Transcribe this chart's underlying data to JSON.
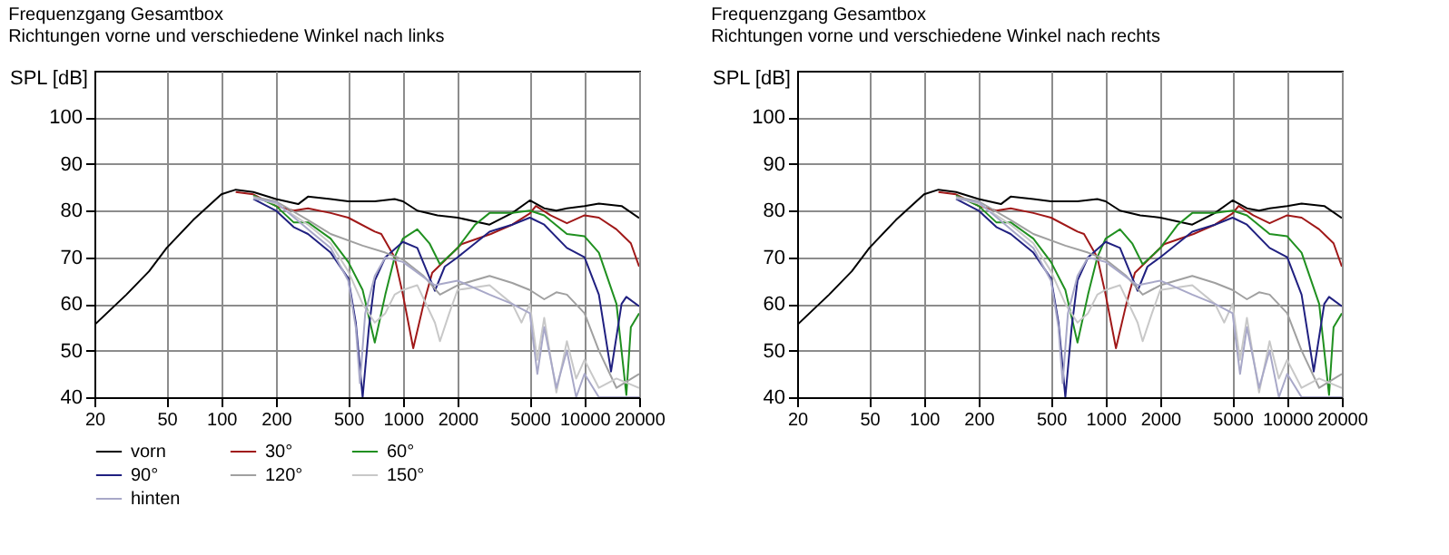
{
  "chart_data": [
    {
      "type": "line",
      "title": "Frequenzgang Gesamtbox",
      "subtitle": "Richtungen vorne und verschiedene Winkel nach links",
      "ylabel": "SPL [dB]",
      "log": "x",
      "grid": true,
      "legend": "bottom",
      "line_style": "solid",
      "xlim": [
        20,
        20000
      ],
      "xticks": [
        20,
        50,
        100,
        200,
        500,
        1000,
        2000,
        5000,
        10000,
        20000
      ],
      "ylim": [
        40,
        110
      ],
      "yticks": [
        40,
        50,
        60,
        70,
        80,
        90,
        100
      ],
      "series": [
        {
          "name": "vorn",
          "color": "#000000",
          "x": [
            20,
            30,
            40,
            50,
            70,
            100,
            120,
            150,
            200,
            265,
            300,
            400,
            500,
            700,
            900,
            1000,
            1200,
            1550,
            2000,
            3000,
            4000,
            5000,
            6000,
            7000,
            8000,
            10000,
            12000,
            16000,
            20000
          ],
          "values": [
            55.5,
            62,
            67,
            72,
            78,
            83.5,
            84.5,
            84,
            82.5,
            81.4,
            83,
            82.5,
            82,
            82,
            82.5,
            82,
            80,
            79,
            78.5,
            77,
            79.5,
            82.2,
            80.5,
            80,
            80.5,
            81,
            81.5,
            81,
            78.4
          ]
        },
        {
          "name": "30°",
          "color": "#a01818",
          "x": [
            120,
            150,
            200,
            250,
            300,
            400,
            500,
            700,
            760,
            900,
            1000,
            1140,
            1300,
            1450,
            2100,
            3050,
            4000,
            5000,
            5400,
            6500,
            8000,
            10000,
            12000,
            15000,
            18000,
            20000
          ],
          "values": [
            84,
            83.5,
            81,
            80,
            80.5,
            79.5,
            78.5,
            75.5,
            75,
            70,
            62,
            50.5,
            60,
            66.7,
            72.8,
            75,
            77,
            79.4,
            81,
            79,
            77.3,
            79,
            78.5,
            76,
            73,
            68
          ]
        },
        {
          "name": "60°",
          "color": "#209020",
          "x": [
            150,
            200,
            250,
            300,
            400,
            500,
            600,
            700,
            800,
            900,
            1000,
            1200,
            1400,
            1600,
            2000,
            2500,
            3000,
            4000,
            5000,
            6000,
            8000,
            10000,
            12000,
            15000,
            17000,
            18000,
            20000
          ],
          "values": [
            83.3,
            81,
            77.5,
            77.5,
            74,
            69,
            63,
            51.7,
            62,
            70,
            74,
            76,
            73,
            68.5,
            72,
            77,
            79.5,
            79.5,
            80,
            79,
            75,
            74.5,
            71,
            60,
            40.5,
            55,
            58
          ]
        },
        {
          "name": "90°",
          "color": "#202080",
          "x": [
            150,
            200,
            250,
            300,
            400,
            500,
            550,
            600,
            650,
            700,
            800,
            1000,
            1200,
            1500,
            1700,
            2000,
            3000,
            4000,
            5000,
            6000,
            8000,
            10000,
            12000,
            14000,
            16000,
            17000,
            20000
          ],
          "values": [
            82.5,
            80,
            76.5,
            75,
            71,
            65.5,
            56,
            40,
            55,
            65,
            70,
            73.3,
            72,
            62.8,
            68,
            70,
            75.5,
            77,
            78.5,
            77,
            72,
            70,
            62,
            45.5,
            60,
            61.5,
            59.5
          ]
        },
        {
          "name": "120°",
          "color": "#a0a0a0",
          "x": [
            150,
            200,
            300,
            400,
            600,
            800,
            1000,
            1300,
            1600,
            2000,
            3000,
            4000,
            5000,
            6000,
            7000,
            8000,
            10000,
            12000,
            15000,
            20000
          ],
          "values": [
            83,
            82,
            78,
            75,
            72.5,
            71,
            69.5,
            66,
            62,
            64,
            66,
            64.5,
            63,
            61,
            62.5,
            62,
            58,
            50,
            42,
            45
          ]
        },
        {
          "name": "150°",
          "color": "#c8c8c8",
          "x": [
            150,
            200,
            300,
            400,
            500,
            600,
            700,
            800,
            900,
            1000,
            1200,
            1500,
            1600,
            1800,
            2000,
            3000,
            4000,
            4500,
            5000,
            5500,
            6000,
            7000,
            8000,
            9000,
            10000,
            12000,
            15000,
            20000
          ],
          "values": [
            82.8,
            81.5,
            77,
            73,
            67,
            60,
            56,
            58,
            62,
            63,
            64,
            56,
            52,
            58,
            63,
            64,
            60,
            56,
            60,
            48,
            57,
            41,
            52,
            44,
            48,
            42,
            44,
            42
          ]
        },
        {
          "name": "hinten",
          "color": "#a8a8c8",
          "x": [
            150,
            200,
            300,
            400,
            500,
            550,
            580,
            620,
            700,
            800,
            1000,
            1500,
            2000,
            3000,
            4000,
            5000,
            5500,
            6000,
            7000,
            8000,
            9000,
            10000,
            12000,
            20000
          ],
          "values": [
            82.6,
            81.8,
            76,
            72,
            65,
            55,
            43,
            58,
            66,
            70,
            69,
            64,
            65,
            62,
            60,
            58,
            45,
            55,
            42,
            50,
            40,
            45,
            40,
            40
          ]
        }
      ]
    },
    {
      "type": "line",
      "title": "Frequenzgang Gesamtbox",
      "subtitle": "Richtungen vorne und verschiedene Winkel nach rechts",
      "ylabel": "SPL [dB]",
      "log": "x",
      "grid": true,
      "legend": "bottom",
      "line_style": "solid",
      "xlim": [
        20,
        20000
      ],
      "xticks": [
        20,
        50,
        100,
        200,
        500,
        1000,
        2000,
        5000,
        10000,
        20000
      ],
      "ylim": [
        40,
        110
      ],
      "yticks": [
        40,
        50,
        60,
        70,
        80,
        90,
        100
      ],
      "series": [
        {
          "name": "vorn",
          "color": "#000000",
          "x": [
            20,
            30,
            40,
            50,
            70,
            100,
            120,
            150,
            200,
            265,
            300,
            400,
            500,
            700,
            900,
            1000,
            1200,
            1550,
            2000,
            3000,
            4000,
            5000,
            6000,
            7000,
            8000,
            10000,
            12000,
            16000,
            20000
          ],
          "values": [
            55.5,
            62,
            67,
            72,
            78,
            83.5,
            84.5,
            84,
            82.5,
            81.4,
            83,
            82.5,
            82,
            82,
            82.5,
            82,
            80,
            79,
            78.5,
            77,
            79.5,
            82.2,
            80.5,
            80,
            80.5,
            81,
            81.5,
            81,
            78.4
          ]
        },
        {
          "name": "30°",
          "color": "#a01818",
          "x": [
            120,
            150,
            200,
            250,
            300,
            400,
            500,
            700,
            760,
            900,
            1000,
            1140,
            1300,
            1450,
            2100,
            3050,
            4000,
            5000,
            5400,
            6500,
            8000,
            10000,
            12000,
            15000,
            18000,
            20000
          ],
          "values": [
            84,
            83.5,
            81,
            80,
            80.5,
            79.5,
            78.5,
            75.5,
            75,
            70,
            62,
            50.5,
            60,
            66.7,
            72.8,
            75,
            77,
            79.4,
            81,
            79,
            77.3,
            79,
            78.5,
            76,
            73,
            68
          ]
        },
        {
          "name": "60°",
          "color": "#209020",
          "x": [
            150,
            200,
            250,
            300,
            400,
            500,
            600,
            700,
            800,
            900,
            1000,
            1200,
            1400,
            1600,
            2000,
            2500,
            3000,
            4000,
            5000,
            6000,
            8000,
            10000,
            12000,
            15000,
            17000,
            18000,
            20000
          ],
          "values": [
            83.3,
            81,
            77.5,
            77.5,
            74,
            69,
            63,
            51.7,
            62,
            70,
            74,
            76,
            73,
            68.5,
            72,
            77,
            79.5,
            79.5,
            80,
            79,
            75,
            74.5,
            71,
            60,
            40.5,
            55,
            58
          ]
        },
        {
          "name": "90°",
          "color": "#202080",
          "x": [
            150,
            200,
            250,
            300,
            400,
            500,
            550,
            600,
            650,
            700,
            800,
            1000,
            1200,
            1500,
            1700,
            2000,
            3000,
            4000,
            5000,
            6000,
            8000,
            10000,
            12000,
            14000,
            16000,
            17000,
            20000
          ],
          "values": [
            82.5,
            80,
            76.5,
            75,
            71,
            65.5,
            56,
            40,
            55,
            65,
            70,
            73.3,
            72,
            62.8,
            68,
            70,
            75.5,
            77,
            78.5,
            77,
            72,
            70,
            62,
            45.5,
            60,
            61.5,
            59.5
          ]
        },
        {
          "name": "120°",
          "color": "#a0a0a0",
          "x": [
            150,
            200,
            300,
            400,
            600,
            800,
            1000,
            1300,
            1600,
            2000,
            3000,
            4000,
            5000,
            6000,
            7000,
            8000,
            10000,
            12000,
            15000,
            20000
          ],
          "values": [
            83,
            82,
            78,
            75,
            72.5,
            71,
            69.5,
            66,
            62,
            64,
            66,
            64.5,
            63,
            61,
            62.5,
            62,
            58,
            50,
            42,
            45
          ]
        },
        {
          "name": "150°",
          "color": "#c8c8c8",
          "x": [
            150,
            200,
            300,
            400,
            500,
            600,
            700,
            800,
            900,
            1000,
            1200,
            1500,
            1600,
            1800,
            2000,
            3000,
            4000,
            4500,
            5000,
            5500,
            6000,
            7000,
            8000,
            9000,
            10000,
            12000,
            15000,
            20000
          ],
          "values": [
            82.8,
            81.5,
            77,
            73,
            67,
            60,
            56,
            58,
            62,
            63,
            64,
            56,
            52,
            58,
            63,
            64,
            60,
            56,
            60,
            48,
            57,
            41,
            52,
            44,
            48,
            42,
            44,
            42
          ]
        },
        {
          "name": "hinten",
          "color": "#a8a8c8",
          "x": [
            150,
            200,
            300,
            400,
            500,
            550,
            580,
            620,
            700,
            800,
            1000,
            1500,
            2000,
            3000,
            4000,
            5000,
            5500,
            6000,
            7000,
            8000,
            9000,
            10000,
            12000,
            20000
          ],
          "values": [
            82.6,
            81.8,
            76,
            72,
            65,
            55,
            43,
            58,
            66,
            70,
            69,
            64,
            65,
            62,
            60,
            58,
            45,
            55,
            42,
            50,
            40,
            45,
            40,
            40
          ]
        }
      ]
    }
  ]
}
